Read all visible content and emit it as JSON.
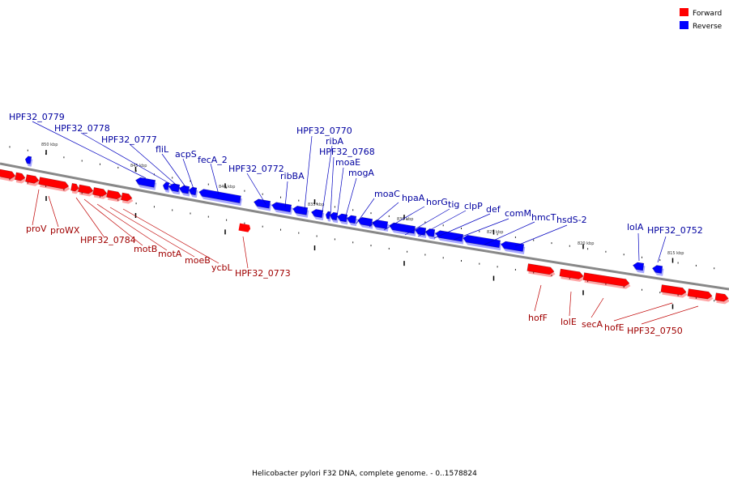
{
  "caption": "Helicobacter pylori F32 DNA, complete genome. - 0..1578824",
  "legend": [
    {
      "label": "Forward",
      "color": "#ff0000"
    },
    {
      "label": "Reverse",
      "color": "#0000ff"
    }
  ],
  "colors": {
    "forward": "#ff0000",
    "reverse": "#0000ff",
    "backbone": "#888888"
  },
  "tick_labels": [
    "850 kbp",
    "845 kbp",
    "840 kbp",
    "835 kbp",
    "830 kbp",
    "825 kbp",
    "820 kbp",
    "815 kbp"
  ],
  "reverse_genes": [
    "HPF32_0779",
    "HPF32_0778",
    "HPF32_0777",
    "fliL",
    "acpS",
    "fecA_2",
    "HPF32_0772",
    "ribBA",
    "HPF32_0770",
    "ribA",
    "HPF32_0768",
    "moaE",
    "mogA",
    "moaC",
    "hpaA",
    "horG",
    "tig",
    "clpP",
    "def",
    "comM",
    "hmcT",
    "hsdS-2",
    "lolA",
    "HPF32_0752"
  ],
  "forward_genes": [
    "proV",
    "proWX",
    "HPF32_0784",
    "motB",
    "motA",
    "moeB",
    "ycbL",
    "HPF32_0773",
    "hofF",
    "lolE",
    "secA",
    "hofE",
    "HPF32_0750"
  ]
}
